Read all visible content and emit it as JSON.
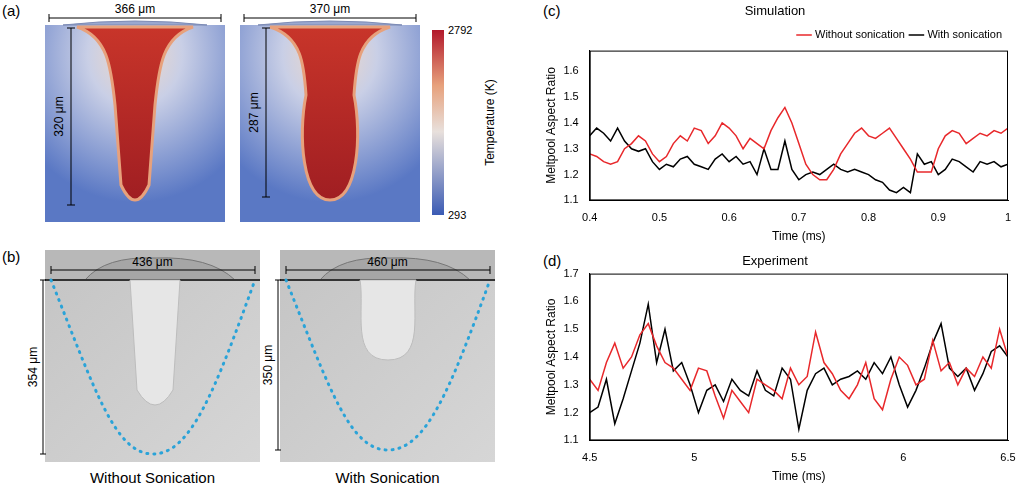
{
  "figure": {
    "panel_a": {
      "label": "(a)",
      "images": [
        {
          "width": "366 μm",
          "depth": "320 μm"
        },
        {
          "width": "370 μm",
          "depth": "287 μm"
        }
      ],
      "colorbar": {
        "title": "Temperature (K)",
        "range": [
          293,
          2792
        ],
        "ticks": [
          293,
          2792
        ]
      }
    },
    "panel_b": {
      "label": "(b)",
      "images": [
        {
          "width": "436 μm",
          "depth": "354 μm",
          "caption": "Without Sonication"
        },
        {
          "width": "460 μm",
          "depth": "350 μm",
          "caption": "With Sonication"
        }
      ]
    }
  },
  "chart_data": [
    {
      "label": "(c)",
      "type": "line",
      "title": "Simulation",
      "x_label": "Time (ms)",
      "y_label": "Meltpool Aspect Ratio",
      "x": [
        0.4,
        0.41,
        0.42,
        0.43,
        0.44,
        0.45,
        0.46,
        0.47,
        0.48,
        0.49,
        0.5,
        0.51,
        0.52,
        0.53,
        0.54,
        0.55,
        0.56,
        0.57,
        0.58,
        0.59,
        0.6,
        0.61,
        0.62,
        0.63,
        0.64,
        0.65,
        0.66,
        0.67,
        0.68,
        0.69,
        0.7,
        0.71,
        0.72,
        0.73,
        0.74,
        0.75,
        0.76,
        0.77,
        0.78,
        0.79,
        0.8,
        0.81,
        0.82,
        0.83,
        0.84,
        0.85,
        0.86,
        0.87,
        0.88,
        0.89,
        0.9,
        0.91,
        0.92,
        0.93,
        0.94,
        0.95,
        0.96,
        0.97,
        0.98,
        0.99,
        1
      ],
      "series": [
        {
          "name": "Without sonication",
          "color": "#e8282b",
          "values": [
            1.28,
            1.27,
            1.25,
            1.24,
            1.25,
            1.3,
            1.32,
            1.35,
            1.33,
            1.28,
            1.25,
            1.27,
            1.32,
            1.35,
            1.33,
            1.38,
            1.37,
            1.32,
            1.35,
            1.4,
            1.38,
            1.35,
            1.3,
            1.34,
            1.32,
            1.3,
            1.37,
            1.42,
            1.46,
            1.4,
            1.32,
            1.24,
            1.2,
            1.18,
            1.18,
            1.22,
            1.28,
            1.32,
            1.36,
            1.38,
            1.35,
            1.34,
            1.36,
            1.38,
            1.34,
            1.3,
            1.26,
            1.21,
            1.21,
            1.21,
            1.3,
            1.35,
            1.37,
            1.36,
            1.32,
            1.34,
            1.36,
            1.35,
            1.37,
            1.36,
            1.38
          ]
        },
        {
          "name": "With sonication",
          "color": "#000000",
          "values": [
            1.35,
            1.38,
            1.36,
            1.33,
            1.38,
            1.33,
            1.3,
            1.29,
            1.3,
            1.25,
            1.22,
            1.24,
            1.23,
            1.26,
            1.27,
            1.24,
            1.23,
            1.22,
            1.26,
            1.28,
            1.25,
            1.27,
            1.24,
            1.25,
            1.2,
            1.3,
            1.22,
            1.22,
            1.33,
            1.22,
            1.18,
            1.2,
            1.21,
            1.2,
            1.22,
            1.24,
            1.22,
            1.21,
            1.22,
            1.21,
            1.2,
            1.18,
            1.17,
            1.14,
            1.13,
            1.15,
            1.13,
            1.28,
            1.24,
            1.25,
            1.2,
            1.22,
            1.26,
            1.25,
            1.23,
            1.21,
            1.25,
            1.24,
            1.25,
            1.23,
            1.24
          ]
        }
      ],
      "xlim": [
        0.4,
        1
      ],
      "xticks": [
        0.4,
        0.5,
        0.6,
        0.7,
        0.8,
        0.9,
        1
      ],
      "ylim": [
        1.1,
        1.68
      ],
      "yticks": [
        1.1,
        1.2,
        1.3,
        1.4,
        1.5,
        1.6
      ],
      "grid": false,
      "legend": "top right"
    },
    {
      "label": "(d)",
      "type": "line",
      "title": "Experiment",
      "x_label": "Time (ms)",
      "y_label": "Meltpool Aspect Ratio",
      "x": [
        4.5,
        4.54,
        4.58,
        4.62,
        4.66,
        4.7,
        4.74,
        4.78,
        4.82,
        4.86,
        4.9,
        4.94,
        4.98,
        5.02,
        5.06,
        5.1,
        5.14,
        5.18,
        5.22,
        5.26,
        5.3,
        5.34,
        5.38,
        5.42,
        5.46,
        5.5,
        5.54,
        5.58,
        5.62,
        5.66,
        5.7,
        5.74,
        5.78,
        5.82,
        5.86,
        5.9,
        5.94,
        5.98,
        6.02,
        6.06,
        6.1,
        6.14,
        6.18,
        6.22,
        6.26,
        6.3,
        6.34,
        6.38,
        6.42,
        6.46,
        6.5
      ],
      "series": [
        {
          "color": "#e8282b",
          "values": [
            1.32,
            1.28,
            1.38,
            1.45,
            1.36,
            1.4,
            1.48,
            1.52,
            1.44,
            1.38,
            1.36,
            1.32,
            1.28,
            1.36,
            1.35,
            1.26,
            1.18,
            1.28,
            1.24,
            1.2,
            1.32,
            1.3,
            1.28,
            1.25,
            1.36,
            1.3,
            1.33,
            1.49,
            1.38,
            1.34,
            1.28,
            1.25,
            1.3,
            1.38,
            1.25,
            1.21,
            1.32,
            1.4,
            1.37,
            1.3,
            1.32,
            1.46,
            1.35,
            1.38,
            1.3,
            1.36,
            1.33,
            1.4,
            1.36,
            1.5,
            1.4
          ]
        },
        {
          "color": "#000000",
          "values": [
            1.2,
            1.22,
            1.32,
            1.16,
            1.25,
            1.35,
            1.45,
            1.59,
            1.38,
            1.5,
            1.35,
            1.38,
            1.3,
            1.2,
            1.28,
            1.3,
            1.24,
            1.32,
            1.28,
            1.26,
            1.35,
            1.28,
            1.26,
            1.36,
            1.32,
            1.14,
            1.28,
            1.34,
            1.36,
            1.3,
            1.32,
            1.33,
            1.35,
            1.32,
            1.38,
            1.34,
            1.4,
            1.3,
            1.22,
            1.28,
            1.36,
            1.45,
            1.52,
            1.36,
            1.33,
            1.36,
            1.28,
            1.34,
            1.42,
            1.44,
            1.4
          ]
        }
      ],
      "xlim": [
        4.5,
        6.5
      ],
      "xticks": [
        4.5,
        5,
        5.5,
        6,
        6.5
      ],
      "ylim": [
        1.1,
        1.7
      ],
      "yticks": [
        1.1,
        1.2,
        1.3,
        1.4,
        1.5,
        1.6,
        1.7
      ],
      "grid": false
    }
  ]
}
